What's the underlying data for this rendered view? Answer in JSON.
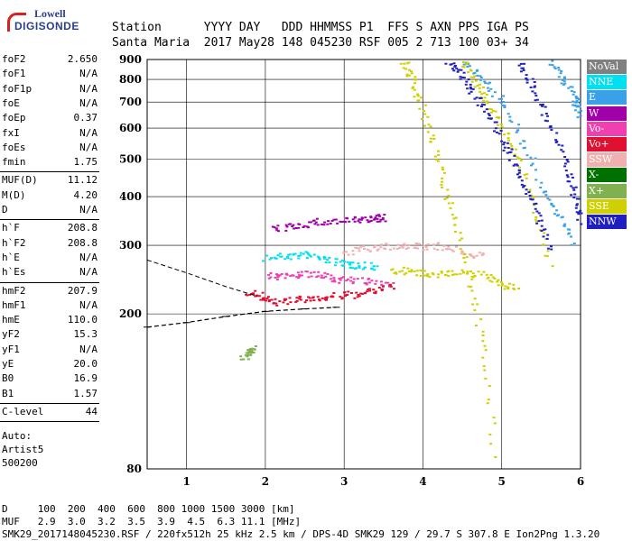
{
  "logo": {
    "line1": "Lowell",
    "line2": "DIGISONDE"
  },
  "header": {
    "line1": "Station      YYYY DAY   DDD HHMMSS P1  FFS S AXN PPS IGA PS",
    "line2": "Santa Maria  2017 May28 148 045230 RSF 005 2 713 100 03+ 34"
  },
  "params": [
    {
      "k": "foF2",
      "v": "2.650"
    },
    {
      "k": "foF1",
      "v": "N/A"
    },
    {
      "k": "foF1p",
      "v": "N/A"
    },
    {
      "k": "foE",
      "v": "N/A"
    },
    {
      "k": "foEp",
      "v": "0.37"
    },
    {
      "k": "fxI",
      "v": "N/A"
    },
    {
      "k": "foEs",
      "v": "N/A"
    },
    {
      "k": "fmin",
      "v": "1.75"
    },
    {
      "k": "MUF(D)",
      "v": "11.12"
    },
    {
      "k": "M(D)",
      "v": "4.20"
    },
    {
      "k": "D",
      "v": "N/A"
    },
    {
      "k": "h`F",
      "v": "208.8"
    },
    {
      "k": "h`F2",
      "v": "208.8"
    },
    {
      "k": "h`E",
      "v": "N/A"
    },
    {
      "k": "h`Es",
      "v": "N/A"
    },
    {
      "k": "hmF2",
      "v": "207.9"
    },
    {
      "k": "hmF1",
      "v": "N/A"
    },
    {
      "k": "hmE",
      "v": "110.0"
    },
    {
      "k": "yF2",
      "v": "15.3"
    },
    {
      "k": "yF1",
      "v": "N/A"
    },
    {
      "k": "yE",
      "v": "20.0"
    },
    {
      "k": "B0",
      "v": "16.9"
    },
    {
      "k": "B1",
      "v": "1.57"
    },
    {
      "k": "C-level",
      "v": "44"
    }
  ],
  "auto": {
    "label": "Auto:",
    "name": "Artist5",
    "code": "500200"
  },
  "legend": [
    {
      "label": "NoVal",
      "color": "#808080"
    },
    {
      "label": "NNE",
      "color": "#00e0f0"
    },
    {
      "label": "E",
      "color": "#3aa0e8"
    },
    {
      "label": "W",
      "color": "#a000a8"
    },
    {
      "label": "Vo-",
      "color": "#f040b0"
    },
    {
      "label": "Vo+",
      "color": "#e01030"
    },
    {
      "label": "SSW",
      "color": "#f0b0b0"
    },
    {
      "label": "X-",
      "color": "#007000"
    },
    {
      "label": "X+",
      "color": "#80b050"
    },
    {
      "label": "SSE",
      "color": "#d0d000"
    },
    {
      "label": "NNW",
      "color": "#2020c0"
    }
  ],
  "footer": {
    "line1": "D     100  200  400  600  800 1000 1500 3000 [km]",
    "line2": "MUF   2.9  3.0  3.2  3.5  3.9  4.5  6.3 11.1 [MHz]",
    "line3": "SMK29_2017148045230.RSF / 220fx512h 25 kHz 2.5 km / DPS-4D SMK29 129 / 29.7 S 307.8 E Ion2Png 1.3.20"
  },
  "chart_data": {
    "type": "scatter",
    "title": "",
    "xlabel": "",
    "ylabel": "",
    "xlim": [
      0.5,
      6.0
    ],
    "ylim": [
      80,
      900
    ],
    "y_scale": "log",
    "x_ticks": [
      1,
      2,
      3,
      4,
      5,
      6
    ],
    "y_ticks": [
      80,
      200,
      300,
      400,
      500,
      600,
      700,
      800,
      900
    ],
    "grid": true,
    "legend_position": "right",
    "series": [
      {
        "name": "NNE",
        "traces": [
          [
            [
              2.0,
              280
            ],
            [
              2.5,
              285
            ],
            [
              3.0,
              270
            ],
            [
              3.4,
              265
            ]
          ]
        ]
      },
      {
        "name": "E",
        "traces": [
          [
            [
              4.5,
              890
            ],
            [
              5.0,
              700
            ],
            [
              5.5,
              420
            ],
            [
              5.9,
              300
            ]
          ],
          [
            [
              5.6,
              900
            ],
            [
              5.9,
              720
            ],
            [
              6.0,
              640
            ]
          ]
        ]
      },
      {
        "name": "W",
        "traces": [
          [
            [
              2.1,
              330
            ],
            [
              2.6,
              345
            ],
            [
              3.2,
              350
            ],
            [
              3.5,
              355
            ]
          ]
        ]
      },
      {
        "name": "Vo-",
        "traces": [
          [
            [
              2.0,
              250
            ],
            [
              2.5,
              255
            ],
            [
              3.0,
              245
            ],
            [
              3.6,
              240
            ]
          ]
        ]
      },
      {
        "name": "Vo+",
        "traces": [
          [
            [
              1.75,
              230
            ],
            [
              2.1,
              215
            ],
            [
              2.6,
              220
            ],
            [
              3.1,
              225
            ],
            [
              3.6,
              235
            ]
          ]
        ]
      },
      {
        "name": "SSW",
        "traces": [
          [
            [
              3.0,
              290
            ],
            [
              3.6,
              300
            ],
            [
              4.2,
              300
            ],
            [
              4.8,
              280
            ]
          ]
        ]
      },
      {
        "name": "X+",
        "traces": [
          [
            [
              1.7,
              155
            ],
            [
              1.85,
              165
            ]
          ]
        ]
      },
      {
        "name": "SSE",
        "traces": [
          [
            [
              3.6,
              260
            ],
            [
              4.1,
              255
            ],
            [
              4.7,
              255
            ],
            [
              5.2,
              230
            ]
          ],
          [
            [
              3.75,
              900
            ],
            [
              3.95,
              700
            ],
            [
              4.25,
              430
            ],
            [
              4.6,
              240
            ],
            [
              4.9,
              80
            ]
          ],
          [
            [
              4.5,
              900
            ],
            [
              4.8,
              700
            ],
            [
              5.2,
              500
            ],
            [
              5.6,
              260
            ]
          ]
        ]
      },
      {
        "name": "NNW",
        "traces": [
          [
            [
              4.3,
              900
            ],
            [
              4.6,
              760
            ],
            [
              5.0,
              560
            ],
            [
              5.3,
              420
            ],
            [
              5.6,
              290
            ]
          ],
          [
            [
              5.2,
              900
            ],
            [
              5.5,
              680
            ],
            [
              5.85,
              450
            ],
            [
              6.0,
              340
            ]
          ]
        ]
      }
    ],
    "profile": {
      "points": [
        [
          0.5,
          185
        ],
        [
          1.0,
          190
        ],
        [
          1.5,
          197
        ],
        [
          2.0,
          203
        ],
        [
          2.5,
          206
        ],
        [
          2.9,
          208
        ]
      ],
      "dashed_top": [
        [
          0.5,
          275
        ],
        [
          1.0,
          255
        ],
        [
          1.5,
          235
        ],
        [
          1.9,
          222
        ]
      ]
    }
  }
}
